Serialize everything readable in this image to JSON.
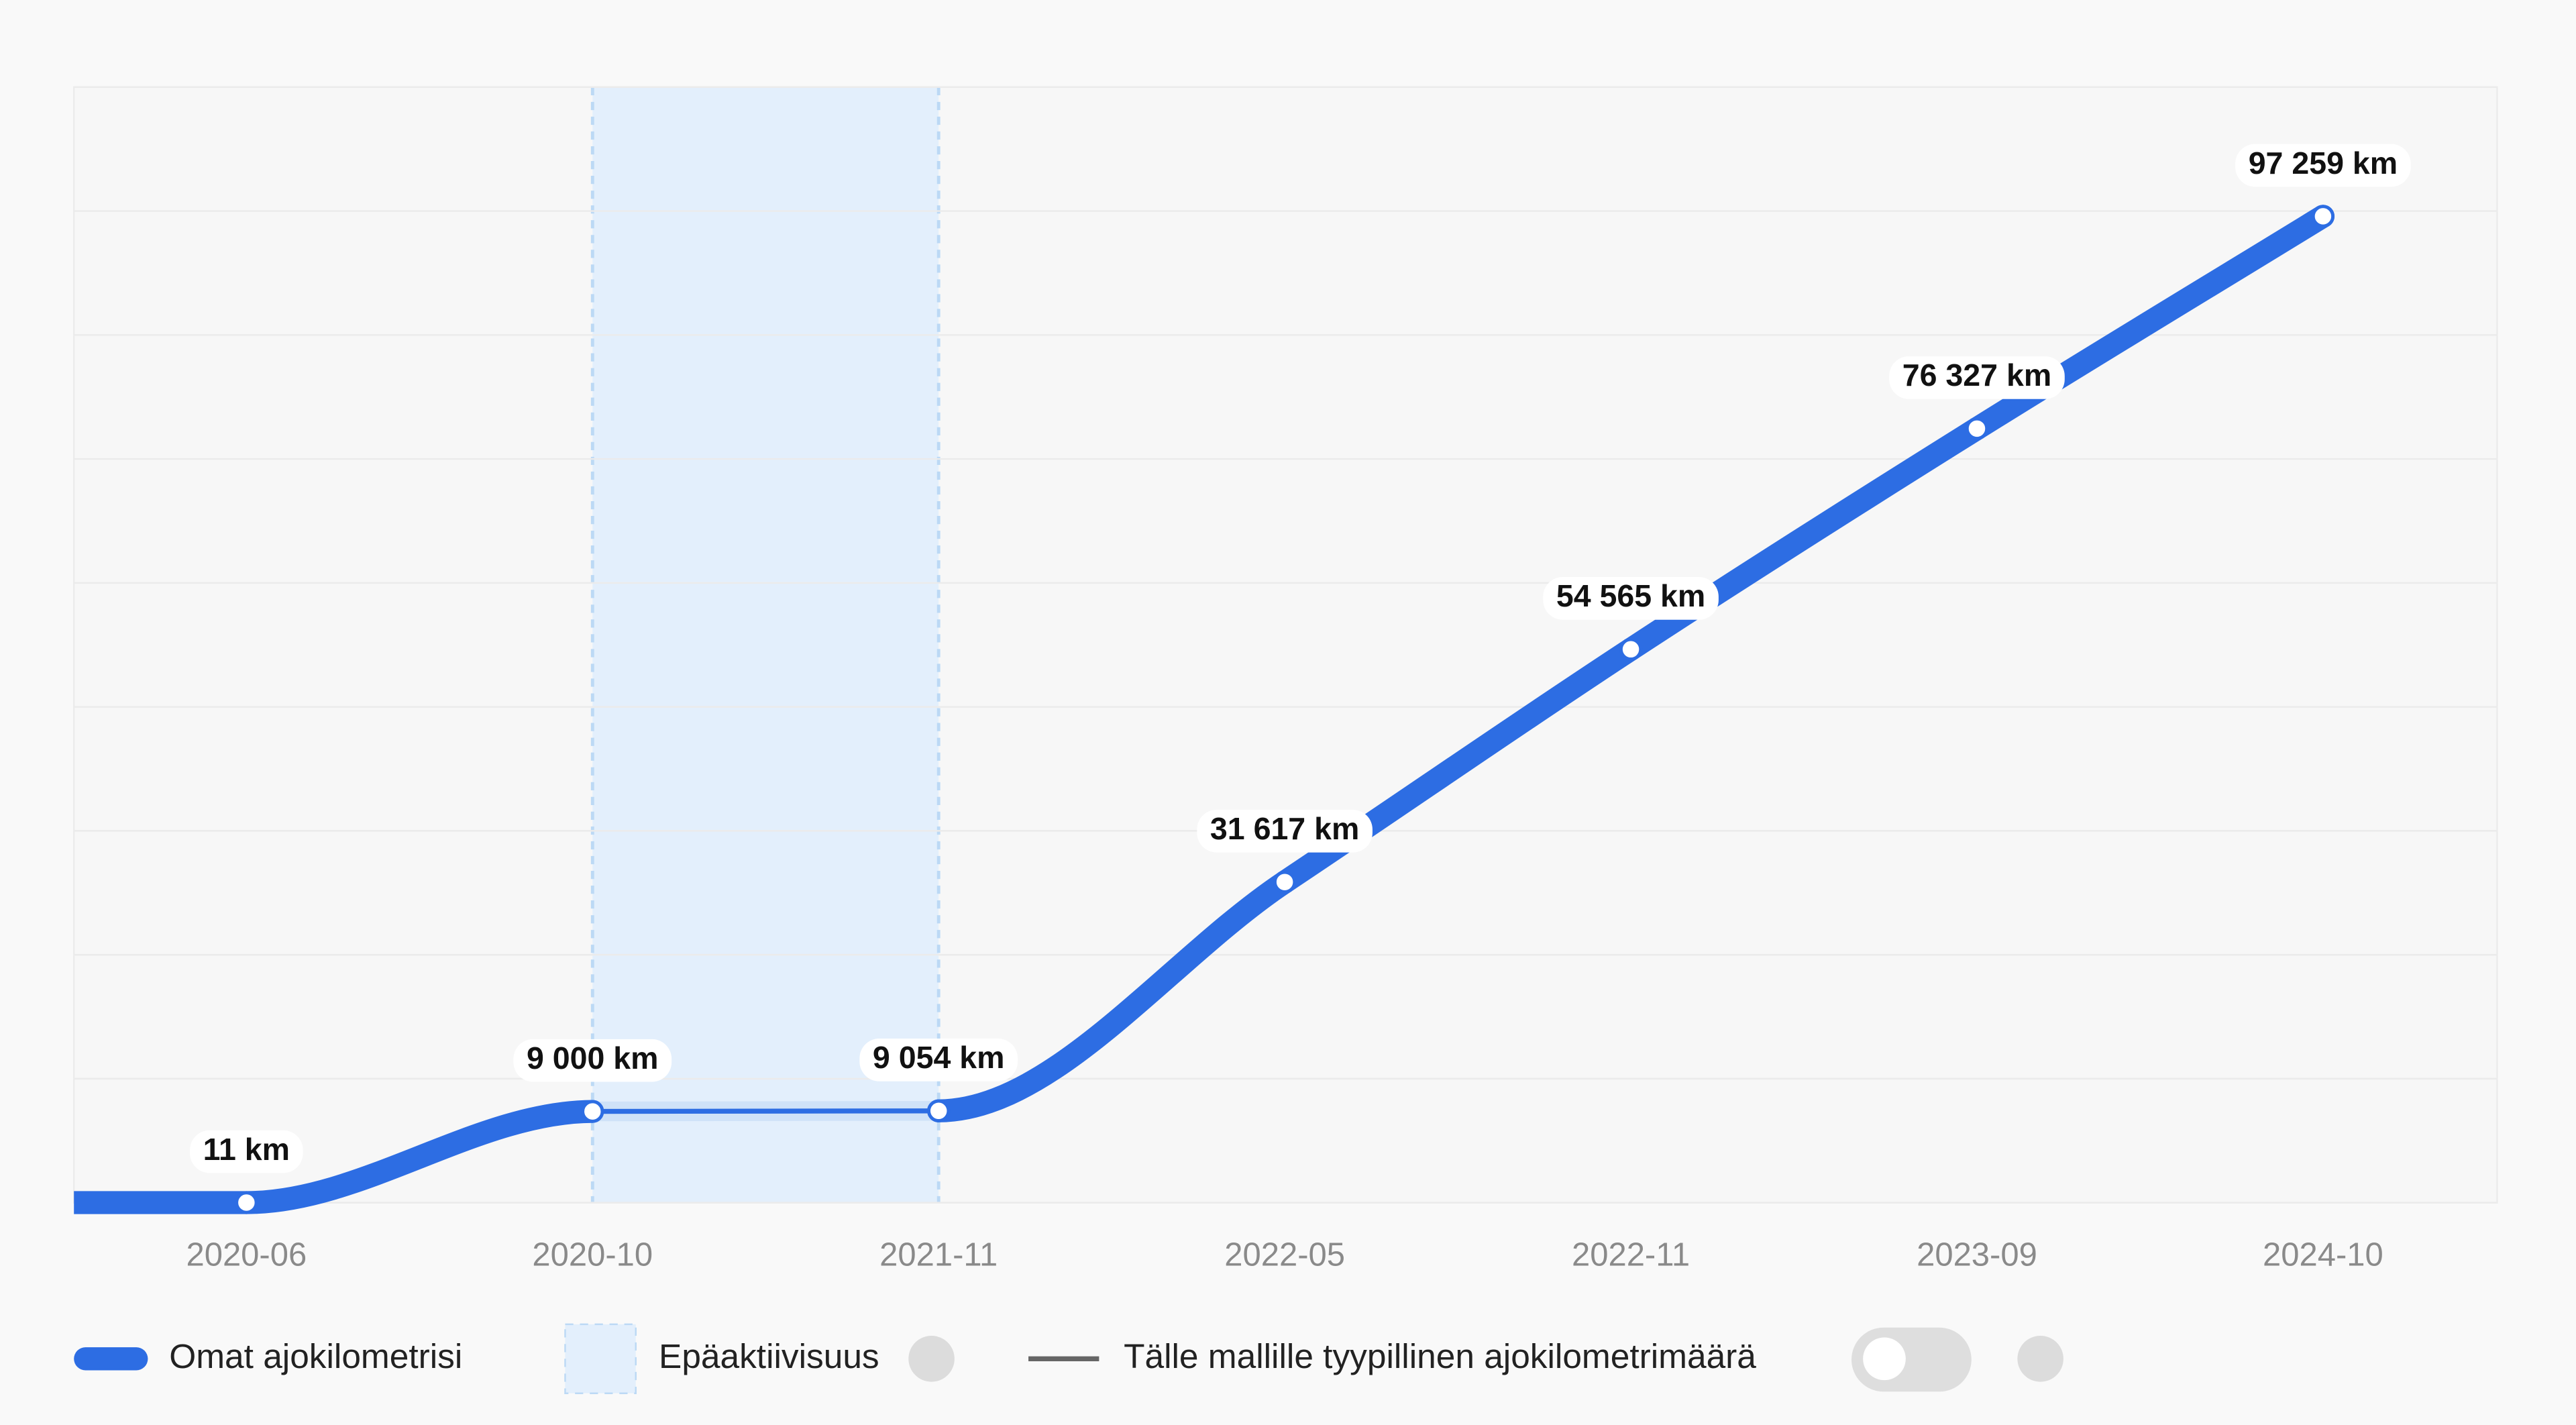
{
  "chart_data": {
    "type": "line",
    "categories": [
      "2020-06",
      "2020-10",
      "2021-11",
      "2022-05",
      "2022-11",
      "2023-09",
      "2024-10"
    ],
    "series": [
      {
        "name": "Omat ajokilometrisi",
        "color": "#2d6de3",
        "values": [
          11,
          9000,
          9054,
          31617,
          54565,
          76327,
          97259
        ],
        "value_labels": [
          "11 km",
          "9 000 km",
          "9 054 km",
          "31 617 km",
          "54 565 km",
          "76 327 km",
          "97 259 km"
        ]
      }
    ],
    "inactive": {
      "name": "Epäaktiivisuus",
      "from": "2020-10",
      "to": "2021-11",
      "color": "#e3effc"
    },
    "typical_label": "Tälle mallille tyypillinen ajokilometrimäärä",
    "help_icon": "?",
    "ylim": [
      0,
      110000
    ],
    "yticks": [
      0,
      12222,
      24444,
      36667,
      48889,
      61111,
      73333,
      85556,
      97778,
      110000
    ],
    "grid": true
  }
}
